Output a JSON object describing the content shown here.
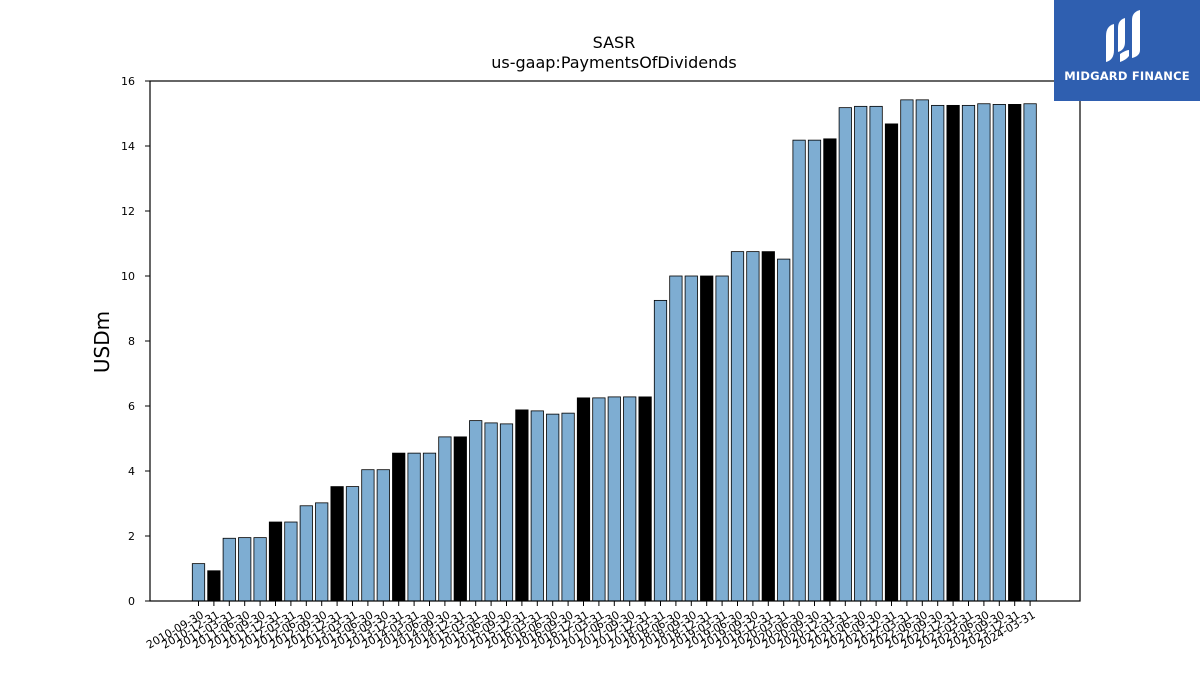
{
  "brand": {
    "name": "MIDGARD FINANCE",
    "bg_color": "#2f5fb0"
  },
  "chart_data": {
    "type": "bar",
    "title": "SASR",
    "subtitle": "us-gaap:PaymentsOfDividends",
    "xlabel": "",
    "ylabel": "USDm",
    "ylim": [
      0,
      16
    ],
    "yticks": [
      0,
      2,
      4,
      6,
      8,
      10,
      12,
      14,
      16
    ],
    "grid": false,
    "colors": {
      "quarter": "#7eadd2",
      "annual": "#000000",
      "edge": "#000000"
    },
    "categories": [
      "2010-09-30",
      "2010-12-31",
      "2011-03-31",
      "2011-06-30",
      "2011-09-30",
      "2011-12-31",
      "2012-03-31",
      "2012-06-30",
      "2012-09-30",
      "2012-12-31",
      "2013-03-31",
      "2013-06-30",
      "2013-09-30",
      "2013-12-31",
      "2014-03-31",
      "2014-06-30",
      "2014-09-30",
      "2014-12-31",
      "2015-03-31",
      "2015-06-30",
      "2015-09-30",
      "2015-12-31",
      "2016-03-31",
      "2016-06-30",
      "2016-09-30",
      "2016-12-31",
      "2017-03-31",
      "2017-06-30",
      "2017-09-30",
      "2017-12-31",
      "2018-03-31",
      "2018-06-30",
      "2018-09-30",
      "2018-12-31",
      "2019-03-31",
      "2019-06-30",
      "2019-09-30",
      "2019-12-31",
      "2020-03-31",
      "2020-06-30",
      "2020-09-30",
      "2020-12-31",
      "2021-03-31",
      "2021-06-30",
      "2021-09-30",
      "2021-12-31",
      "2022-03-31",
      "2022-06-30",
      "2022-09-30",
      "2022-12-31",
      "2023-03-31",
      "2023-06-30",
      "2023-09-30",
      "2023-12-31",
      "2024-03-31"
    ],
    "values": [
      1.15,
      0.93,
      1.93,
      1.95,
      1.95,
      2.43,
      2.43,
      2.93,
      3.02,
      3.52,
      3.52,
      4.04,
      4.04,
      4.55,
      4.55,
      4.55,
      5.05,
      5.05,
      5.55,
      5.48,
      5.45,
      5.88,
      5.85,
      5.75,
      5.78,
      6.25,
      6.25,
      6.28,
      6.28,
      6.28,
      9.25,
      10.0,
      10.0,
      10.0,
      10.0,
      10.75,
      10.75,
      10.75,
      10.52,
      14.18,
      14.18,
      14.22,
      15.18,
      15.22,
      15.22,
      14.68,
      15.42,
      15.42,
      15.25,
      15.25,
      15.25,
      15.3,
      15.28,
      15.28,
      15.3
    ],
    "annual": [
      false,
      true,
      false,
      false,
      false,
      true,
      false,
      false,
      false,
      true,
      false,
      false,
      false,
      true,
      false,
      false,
      false,
      true,
      false,
      false,
      false,
      true,
      false,
      false,
      false,
      true,
      false,
      false,
      false,
      true,
      false,
      false,
      false,
      true,
      false,
      false,
      false,
      true,
      false,
      false,
      false,
      true,
      false,
      false,
      false,
      true,
      false,
      false,
      false,
      true,
      false,
      false,
      false,
      true,
      false
    ]
  }
}
